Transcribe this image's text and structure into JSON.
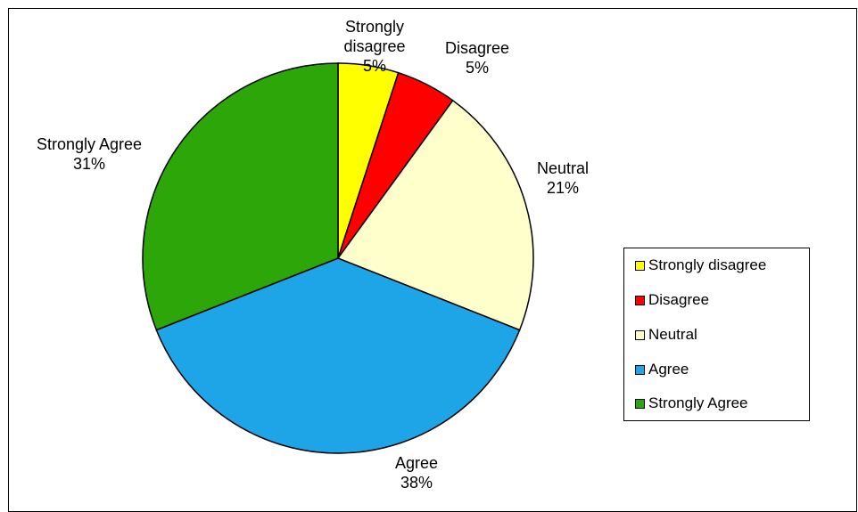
{
  "chart_data": {
    "type": "pie",
    "title": "",
    "categories": [
      "Strongly disagree",
      "Disagree",
      "Neutral",
      "Agree",
      "Strongly Agree"
    ],
    "values": [
      5,
      5,
      21,
      38,
      31
    ],
    "value_labels": [
      "5%",
      "5%",
      "21%",
      "38%",
      "31%"
    ],
    "slice_labels": [
      [
        "Strongly",
        "disagree"
      ],
      [
        "Disagree"
      ],
      [
        "Neutral"
      ],
      [
        "Agree"
      ],
      [
        "Strongly Agree"
      ]
    ],
    "colors": [
      "#ffff00",
      "#ff0000",
      "#ffffcc",
      "#1ea5e8",
      "#2ca608"
    ],
    "legend": {
      "position": "right",
      "items": [
        "Strongly disagree",
        "Disagree",
        "Neutral",
        "Agree",
        "Strongly Agree"
      ]
    },
    "start_angle": "12 o'clock",
    "direction": "clockwise"
  }
}
